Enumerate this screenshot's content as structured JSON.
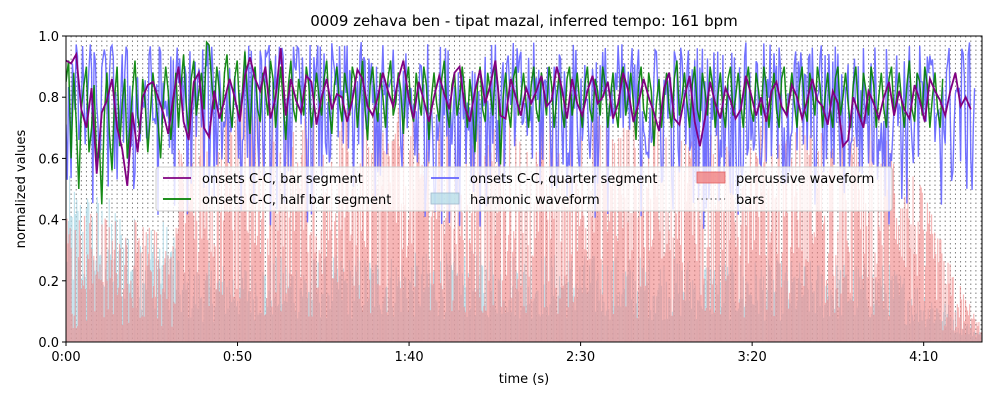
{
  "chart_data": {
    "type": "line",
    "title": "0009 zehava ben - tipat mazal, inferred tempo: 161 bpm",
    "xlabel": "time (s)",
    "ylabel": "normalized values",
    "xlim": [
      0,
      267
    ],
    "ylim": [
      0,
      1.0
    ],
    "x_ticks": [
      {
        "value": 0,
        "label": "0:00"
      },
      {
        "value": 50,
        "label": "0:50"
      },
      {
        "value": 100,
        "label": "1:40"
      },
      {
        "value": 150,
        "label": "2:30"
      },
      {
        "value": 200,
        "label": "3:20"
      },
      {
        "value": 250,
        "label": "4:10"
      }
    ],
    "y_ticks": [
      {
        "value": 0.0,
        "label": "0.0"
      },
      {
        "value": 0.2,
        "label": "0.2"
      },
      {
        "value": 0.4,
        "label": "0.4"
      },
      {
        "value": 0.6,
        "label": "0.6"
      },
      {
        "value": 0.8,
        "label": "0.8"
      },
      {
        "value": 1.0,
        "label": "1.0"
      }
    ],
    "grid": false,
    "legend_position": "center",
    "bar_interval_s": 1.49,
    "series": [
      {
        "name": "onsets C-C, bar segment",
        "color": "#800080",
        "x_start": 0,
        "x_step": 1.49,
        "values": [
          0.92,
          0.91,
          0.94,
          0.76,
          0.7,
          0.83,
          0.55,
          0.75,
          0.79,
          0.86,
          0.7,
          0.63,
          0.51,
          0.75,
          0.62,
          0.8,
          0.84,
          0.85,
          0.8,
          0.75,
          0.68,
          0.8,
          0.9,
          0.72,
          0.66,
          0.85,
          0.88,
          0.7,
          0.67,
          0.82,
          0.73,
          0.79,
          0.86,
          0.8,
          0.72,
          0.87,
          0.93,
          0.86,
          0.82,
          0.9,
          0.73,
          0.8,
          0.96,
          0.74,
          0.86,
          0.79,
          0.75,
          0.87,
          0.85,
          0.71,
          0.8,
          0.86,
          0.76,
          0.81,
          0.8,
          0.72,
          0.79,
          0.89,
          0.86,
          0.77,
          0.74,
          0.8,
          0.88,
          0.82,
          0.77,
          0.86,
          0.92,
          0.8,
          0.73,
          0.85,
          0.79,
          0.72,
          0.8,
          0.87,
          0.81,
          0.76,
          0.88,
          0.9,
          0.77,
          0.72,
          0.82,
          0.89,
          0.78,
          0.84,
          0.92,
          0.74,
          0.73,
          0.86,
          0.8,
          0.74,
          0.83,
          0.78,
          0.82,
          0.87,
          0.77,
          0.79,
          0.9,
          0.83,
          0.73,
          0.86,
          0.78,
          0.74,
          0.82,
          0.87,
          0.78,
          0.8,
          0.85,
          0.73,
          0.78,
          0.88,
          0.82,
          0.72,
          0.78,
          0.86,
          0.8,
          0.75,
          0.69,
          0.83,
          0.88,
          0.73,
          0.71,
          0.8,
          0.87,
          0.72,
          0.64,
          0.73,
          0.85,
          0.78,
          0.73,
          0.83,
          0.79,
          0.73,
          0.76,
          0.87,
          0.81,
          0.74,
          0.8,
          0.72,
          0.82,
          0.85,
          0.77,
          0.74,
          0.84,
          0.8,
          0.73,
          0.79,
          0.86,
          0.79,
          0.77,
          0.71,
          0.82,
          0.78,
          0.64,
          0.66,
          0.8,
          0.75,
          0.7,
          0.82,
          0.78,
          0.73,
          0.8,
          0.85,
          0.74,
          0.82,
          0.76,
          0.73,
          0.84,
          0.79,
          0.72,
          0.86,
          0.82,
          0.79,
          0.74,
          0.82,
          0.88,
          0.77,
          0.8,
          0.76
        ]
      },
      {
        "name": "onsets C-C, half bar segment",
        "color": "#008000",
        "x_start": 0,
        "x_step": 0.745,
        "values": [
          0.85,
          0.92,
          0.6,
          0.88,
          0.72,
          0.5,
          0.76,
          0.84,
          0.9,
          0.62,
          0.7,
          0.84,
          0.58,
          0.66,
          0.45,
          0.74,
          0.88,
          0.68,
          0.56,
          0.8,
          0.9,
          0.64,
          0.78,
          0.86,
          0.6,
          0.7,
          0.82,
          0.92,
          0.74,
          0.68,
          0.86,
          0.78,
          0.62,
          0.74,
          0.88,
          0.8,
          0.72,
          0.6,
          0.78,
          0.9,
          0.82,
          0.66,
          0.76,
          0.88,
          0.7,
          0.84,
          0.94,
          0.78,
          0.68,
          0.86,
          0.92,
          0.74,
          0.82,
          0.88,
          0.76,
          0.98,
          0.97,
          0.85,
          0.76,
          0.9,
          0.82,
          0.72,
          0.88,
          0.94,
          0.78,
          0.7,
          0.86,
          0.92,
          0.74,
          0.82,
          0.95,
          0.8,
          0.68,
          0.86,
          0.9,
          0.76,
          0.72,
          0.88,
          0.82,
          0.74,
          0.92,
          0.86,
          0.7,
          0.8,
          0.9,
          0.78,
          0.66,
          0.84,
          0.92,
          0.76,
          0.72,
          0.86,
          0.8,
          0.74,
          0.9,
          0.84,
          0.7,
          0.78,
          0.88,
          0.8,
          0.74,
          0.86,
          0.92,
          0.76,
          0.68,
          0.84,
          0.9,
          0.78,
          0.72,
          0.88,
          0.82,
          0.74,
          0.9,
          0.86,
          0.7,
          0.8,
          0.92,
          0.76,
          0.66,
          0.84,
          0.9,
          0.78,
          0.72,
          0.88,
          0.8,
          0.7,
          0.86,
          0.92,
          0.74,
          0.78,
          0.88,
          0.82,
          0.68,
          0.84,
          0.9,
          0.76,
          0.72,
          0.88,
          0.8,
          0.74,
          0.9,
          0.84,
          0.66,
          0.8,
          0.88,
          0.78,
          0.72,
          0.86,
          0.92,
          0.76,
          0.7,
          0.84,
          0.88,
          0.74,
          0.8,
          0.9,
          0.82,
          0.7,
          0.86,
          0.78,
          0.62,
          0.84,
          0.9,
          0.76,
          0.72,
          0.88,
          0.82,
          0.74,
          0.9,
          0.84,
          0.58,
          0.8,
          0.88,
          0.76,
          0.7,
          0.86,
          0.9,
          0.74,
          0.8,
          0.88,
          0.78,
          0.7,
          0.84,
          0.9,
          0.76,
          0.72,
          0.88,
          0.82,
          0.74,
          0.9,
          0.84,
          0.7,
          0.8,
          0.88,
          0.76,
          0.7,
          0.86,
          0.9,
          0.74,
          0.8,
          0.88,
          0.78,
          0.7,
          0.84,
          0.9,
          0.76,
          0.72,
          0.86,
          0.82,
          0.74,
          0.9,
          0.84,
          0.7,
          0.8,
          0.88,
          0.76,
          0.7,
          0.86,
          0.9,
          0.74,
          0.8,
          0.88,
          0.78,
          0.66,
          0.84,
          0.9,
          0.76,
          0.72,
          0.88,
          0.82,
          0.64,
          0.78,
          0.86,
          0.7,
          0.8,
          0.88,
          0.76,
          0.7,
          0.86,
          0.92,
          0.74,
          0.8,
          0.88,
          0.78,
          0.7,
          0.84,
          0.9,
          0.76,
          0.72,
          0.88,
          0.82,
          0.74,
          0.9,
          0.84,
          0.7,
          0.8,
          0.88,
          0.76,
          0.7,
          0.86,
          0.9,
          0.74,
          0.8,
          0.88,
          0.78,
          0.7,
          0.84,
          0.9,
          0.76,
          0.72,
          0.88,
          0.82,
          0.74,
          0.9,
          0.84,
          0.7,
          0.8,
          0.88,
          0.76,
          0.7,
          0.86,
          0.9,
          0.74,
          0.8,
          0.88,
          0.78,
          0.7,
          0.84,
          0.9,
          0.76,
          0.72,
          0.88,
          0.82,
          0.74,
          0.9,
          0.84,
          0.7,
          0.8,
          0.88,
          0.76,
          0.7,
          0.86,
          0.9,
          0.74,
          0.8,
          0.88,
          0.78,
          0.7,
          0.84,
          0.9,
          0.76,
          0.72,
          0.88,
          0.82,
          0.74,
          0.9,
          0.84,
          0.7,
          0.8,
          0.88,
          0.76,
          0.7,
          0.86,
          0.9,
          0.74,
          0.8,
          0.88,
          0.78,
          0.7,
          0.84,
          0.92,
          0.76,
          0.72,
          0.88,
          0.85,
          0.74,
          0.9,
          0.84,
          0.7,
          0.8,
          0.88,
          0.76,
          0.7,
          0.86
        ]
      },
      {
        "name": "onsets C-C, quarter segment",
        "color": "#6464ff",
        "x_start": 0,
        "x_step": 0.3725,
        "amplitude_low": 0.35,
        "amplitude_high": 0.98
      },
      {
        "name": "harmonic waveform",
        "color": "#add8e6",
        "envelope": [
          [
            0,
            0.55
          ],
          [
            10,
            0.5
          ],
          [
            20,
            0.42
          ],
          [
            32,
            0.4
          ],
          [
            33,
            0.25
          ],
          [
            60,
            0.28
          ],
          [
            120,
            0.3
          ],
          [
            180,
            0.28
          ],
          [
            240,
            0.26
          ],
          [
            255,
            0.15
          ],
          [
            267,
            0.03
          ]
        ]
      },
      {
        "name": "percussive waveform",
        "color": "#f08080",
        "envelope": [
          [
            0,
            0.45
          ],
          [
            20,
            0.4
          ],
          [
            32,
            0.35
          ],
          [
            33,
            0.8
          ],
          [
            60,
            0.78
          ],
          [
            120,
            0.76
          ],
          [
            180,
            0.74
          ],
          [
            240,
            0.72
          ],
          [
            248,
            0.55
          ],
          [
            258,
            0.25
          ],
          [
            267,
            0.05
          ]
        ]
      },
      {
        "name": "bars",
        "color": "#808080",
        "style": "dotted"
      }
    ]
  }
}
